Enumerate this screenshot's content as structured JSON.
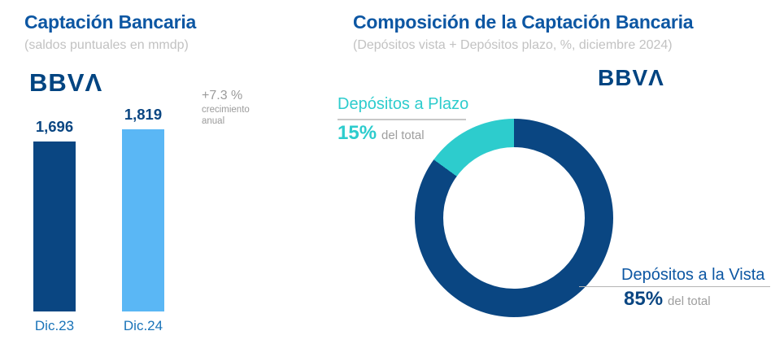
{
  "colors": {
    "navy": "#0A4682",
    "light_blue": "#5AB7F5",
    "aqua": "#2DCCCD",
    "title_blue": "#0D57A3",
    "category_blue": "#1973B8",
    "logo_navy": "#004481",
    "subtitle_gray": "#C2C2C2",
    "annotation_gray": "#9B9B9B",
    "leader_gray": "#B5B5B5"
  },
  "chart_data": [
    {
      "type": "bar",
      "title": "Captación Bancaria",
      "subtitle": "(saldos puntuales en mmdp)",
      "brand_logo": "BBVΛ",
      "categories": [
        "Dic.23",
        "Dic.24"
      ],
      "values": [
        1696,
        1819
      ],
      "value_labels": [
        "1,696",
        "1,819"
      ],
      "series_colors": [
        "#0A4682",
        "#5AB7F5"
      ],
      "ylim": [
        0,
        1900
      ],
      "grid": false,
      "legend": false,
      "annotation": {
        "growth": "+7.3 %",
        "caption_line1": "crecimiento",
        "caption_line2": "anual"
      }
    },
    {
      "type": "pie",
      "variant": "donut",
      "title": "Composición de  la Captación Bancaria",
      "subtitle": "(Depósitos vista + Depósitos  plazo, %, diciembre 2024)",
      "brand_logo": "BBVΛ",
      "start_angle_deg": 0,
      "legend_position": "callouts",
      "slices": [
        {
          "label": "Depósitos a la Vista",
          "value": 85,
          "pct_label": "85%",
          "note": "del total",
          "color": "#0A4682"
        },
        {
          "label": "Depósitos a Plazo",
          "value": 15,
          "pct_label": "15%",
          "note": "del total",
          "color": "#2DCCCD"
        }
      ]
    }
  ]
}
